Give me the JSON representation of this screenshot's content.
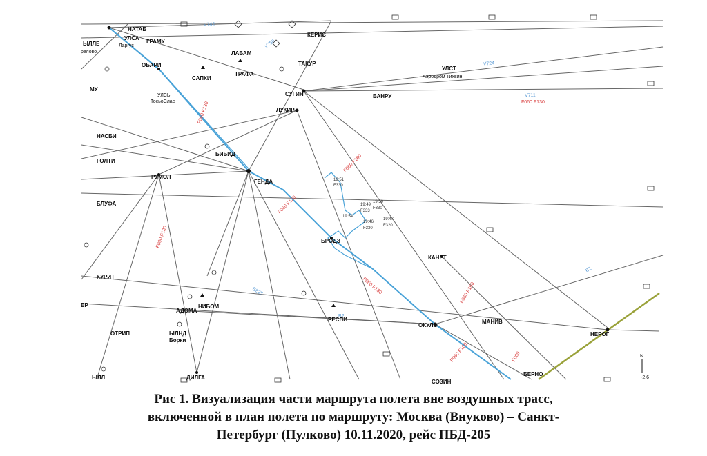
{
  "waypoints": [
    {
      "name": "НАТАБ",
      "label": "НАТАБ"
    },
    {
      "name": "УЛСА",
      "label": "УЛСА"
    },
    {
      "name": "ГРАМУ",
      "label": "ГРАМУ"
    },
    {
      "name": "ЫЛЛЕ",
      "label": "ЫЛЛЕ"
    },
    {
      "name": "релово",
      "label": "релово"
    },
    {
      "name": "Ларгус",
      "label": "Ларгус"
    },
    {
      "name": "ОБАРИ",
      "label": "ОБАРИ"
    },
    {
      "name": "ЛАБАМ",
      "label": "ЛАБАМ"
    },
    {
      "name": "КЕРИС",
      "label": "КЕРИС"
    },
    {
      "name": "ТАКУР",
      "label": "ТАКУР"
    },
    {
      "name": "ТРАФА",
      "label": "ТРАФА"
    },
    {
      "name": "САПКИ",
      "label": "САПКИ"
    },
    {
      "name": "МУ",
      "label": "МУ"
    },
    {
      "name": "УЛСЬ",
      "label": "УЛСЬ"
    },
    {
      "name": "ТосьоСлас",
      "label": "ТосьоСлас"
    },
    {
      "name": "СУГИН",
      "label": "СУГИН"
    },
    {
      "name": "УЛСТ",
      "label": "УЛСТ"
    },
    {
      "name": "Аэродром Тихвин",
      "label": "Аэродром Тихвин"
    },
    {
      "name": "БАНРУ",
      "label": "БАНРУ"
    },
    {
      "name": "ЛУКИР",
      "label": "ЛУКИР"
    },
    {
      "name": "НАСБИ",
      "label": "НАСБИ"
    },
    {
      "name": "БИБИД",
      "label": "БИБИД"
    },
    {
      "name": "ГОЛТИ",
      "label": "ГОЛТИ"
    },
    {
      "name": "РУМОЛ",
      "label": "РУМОЛ"
    },
    {
      "name": "ГЕНДА",
      "label": "ГЕНДА"
    },
    {
      "name": "БЛУФА",
      "label": "БЛУФА"
    },
    {
      "name": "БРОДЗ",
      "label": "БРОДЗ"
    },
    {
      "name": "КАНЕТ",
      "label": "КАНЕТ"
    },
    {
      "name": "КУРИТ",
      "label": "КУРИТ"
    },
    {
      "name": "ЕР",
      "label": "ЕР"
    },
    {
      "name": "АДОМА",
      "label": "АДОМА"
    },
    {
      "name": "НИБОМ",
      "label": "НИБОМ"
    },
    {
      "name": "РЕСПИ",
      "label": "РЕСПИ"
    },
    {
      "name": "ОКУЛО",
      "label": "ОКУЛО"
    },
    {
      "name": "МАНИВ",
      "label": "МАНИВ"
    },
    {
      "name": "НЕРОГ",
      "label": "НЕРОГ"
    },
    {
      "name": "ОТРИП",
      "label": "ОТРИП"
    },
    {
      "name": "ЫЛНД",
      "label": "ЫЛНД"
    },
    {
      "name": "Борки",
      "label": "Борки"
    },
    {
      "name": "ЫЛЛ",
      "label": "ЫЛЛ"
    },
    {
      "name": "ДИЛГА",
      "label": "ДИЛГА"
    },
    {
      "name": "БЕРНО",
      "label": "БЕРНО"
    },
    {
      "name": "СОЗИН",
      "label": "СОЗИН"
    }
  ],
  "track_labels": {
    "t1": "19:51",
    "t1f": "F330",
    "t2": "19:49",
    "t2f": "F333",
    "t3": "19:50",
    "t3f": "F330",
    "t4": "19:47",
    "t4f": "F320",
    "t5": "19:46",
    "t5f": "F330",
    "t6": "19:54"
  },
  "north": {
    "letter": "N",
    "value": "-2.6"
  },
  "colors": {
    "route": "#4aa3d8",
    "airway": "#666666",
    "boundary": "#9aa23a",
    "label_red": "#d94040",
    "label_blue": "#5b9bd5"
  },
  "caption": {
    "line1": "Рис 1. Визуализация части маршрута полета вне воздушных трасс,",
    "line2": "включенной в план полета по маршруту: Москва (Внуково) – Санкт-",
    "line3": "Петербург (Пулково) 10.11.2020, рейс ПБД-205"
  }
}
